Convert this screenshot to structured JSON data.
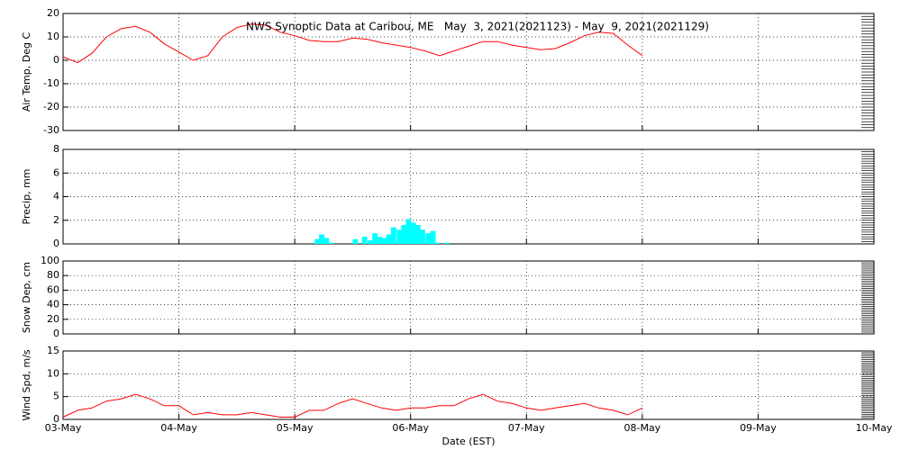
{
  "chart_data": [
    {
      "type": "line",
      "title": "NWS Synoptic Data at Caribou, ME   May  3, 2021(2021123) - May  9, 2021(2021129)",
      "y_label": "Air Temp, Deg C",
      "color": "#ff0000",
      "grid": true,
      "xlim": [
        0,
        7
      ],
      "xticks": [
        0,
        1,
        2,
        3,
        4,
        5,
        6,
        7
      ],
      "ylim": [
        -30,
        20
      ],
      "yticks": [
        -30,
        -20,
        -10,
        0,
        10,
        20
      ],
      "x": [
        0,
        0.125,
        0.25,
        0.375,
        0.5,
        0.625,
        0.75,
        0.875,
        1,
        1.125,
        1.25,
        1.375,
        1.5,
        1.625,
        1.75,
        1.875,
        2,
        2.125,
        2.25,
        2.375,
        2.5,
        2.625,
        2.75,
        2.875,
        3,
        3.125,
        3.25,
        3.375,
        3.5,
        3.625,
        3.75,
        3.875,
        4,
        4.125,
        4.25,
        4.375,
        4.5,
        4.625,
        4.75,
        4.875,
        5
      ],
      "values": [
        1.5,
        -1,
        3,
        10,
        13.5,
        14.5,
        12,
        7,
        3.5,
        0,
        2,
        10,
        14,
        15.5,
        15,
        12,
        10.5,
        8.5,
        8,
        8,
        9.5,
        9,
        7.5,
        6.5,
        5.5,
        4,
        2,
        4,
        6,
        8,
        8,
        6.5,
        5.5,
        4.5,
        5,
        7.5,
        10.5,
        12,
        11.5,
        6.5,
        2
      ]
    },
    {
      "type": "bar",
      "y_label": "Precip, mm",
      "color": "#00ffff",
      "grid": true,
      "xlim": [
        0,
        7
      ],
      "xticks": [
        0,
        1,
        2,
        3,
        4,
        5,
        6,
        7
      ],
      "ylim": [
        0,
        8
      ],
      "yticks": [
        0,
        2,
        4,
        6,
        8
      ],
      "x": [
        2.17,
        2.21,
        2.25,
        2.29,
        2.5,
        2.58,
        2.63,
        2.67,
        2.71,
        2.75,
        2.79,
        2.83,
        2.88,
        2.92,
        2.96,
        3.0,
        3.04,
        3.08,
        3.13,
        3.17,
        3.21,
        3.29
      ],
      "values": [
        0.4,
        0.8,
        0.5,
        0.1,
        0.4,
        0.6,
        0.3,
        0.9,
        0.6,
        0.5,
        0.8,
        1.4,
        1.2,
        1.6,
        2.1,
        1.8,
        1.6,
        1.2,
        0.9,
        1.1,
        0.1,
        0.1
      ]
    },
    {
      "type": "line",
      "y_label": "Snow Dep, cm",
      "color": "#ff0000",
      "grid": true,
      "xlim": [
        0,
        7
      ],
      "xticks": [
        0,
        1,
        2,
        3,
        4,
        5,
        6,
        7
      ],
      "ylim": [
        0,
        100
      ],
      "yticks": [
        0,
        20,
        40,
        60,
        80,
        100
      ]
    },
    {
      "type": "line",
      "y_label": "Wind Spd, m/s",
      "x_label": "Date (EST)",
      "color": "#ff0000",
      "grid": true,
      "xlim": [
        0,
        7
      ],
      "xticks": [
        {
          "value": 0,
          "label": "03-May"
        },
        {
          "value": 1,
          "label": "04-May"
        },
        {
          "value": 2,
          "label": "05-May"
        },
        {
          "value": 3,
          "label": "06-May"
        },
        {
          "value": 4,
          "label": "07-May"
        },
        {
          "value": 5,
          "label": "08-May"
        },
        {
          "value": 6,
          "label": "09-May"
        },
        {
          "value": 7,
          "label": "10-May"
        }
      ],
      "ylim": [
        0,
        15
      ],
      "yticks": [
        0,
        5,
        10,
        15
      ],
      "x": [
        0,
        0.125,
        0.25,
        0.375,
        0.5,
        0.625,
        0.75,
        0.875,
        1,
        1.125,
        1.25,
        1.375,
        1.5,
        1.625,
        1.75,
        1.875,
        2,
        2.125,
        2.25,
        2.375,
        2.5,
        2.625,
        2.75,
        2.875,
        3,
        3.125,
        3.25,
        3.375,
        3.5,
        3.625,
        3.75,
        3.875,
        4,
        4.125,
        4.25,
        4.375,
        4.5,
        4.625,
        4.75,
        4.875,
        5
      ],
      "values": [
        0.5,
        2,
        2.5,
        4,
        4.5,
        5.5,
        4.5,
        3,
        3,
        1,
        1.5,
        1,
        1,
        1.5,
        1,
        0.5,
        0.5,
        2,
        2,
        3.5,
        4.5,
        3.5,
        2.5,
        2,
        2.5,
        2.5,
        3,
        3,
        4.5,
        5.5,
        4,
        3.5,
        2.5,
        2,
        2.5,
        3,
        3.5,
        2.5,
        2,
        1,
        2.5
      ]
    }
  ]
}
